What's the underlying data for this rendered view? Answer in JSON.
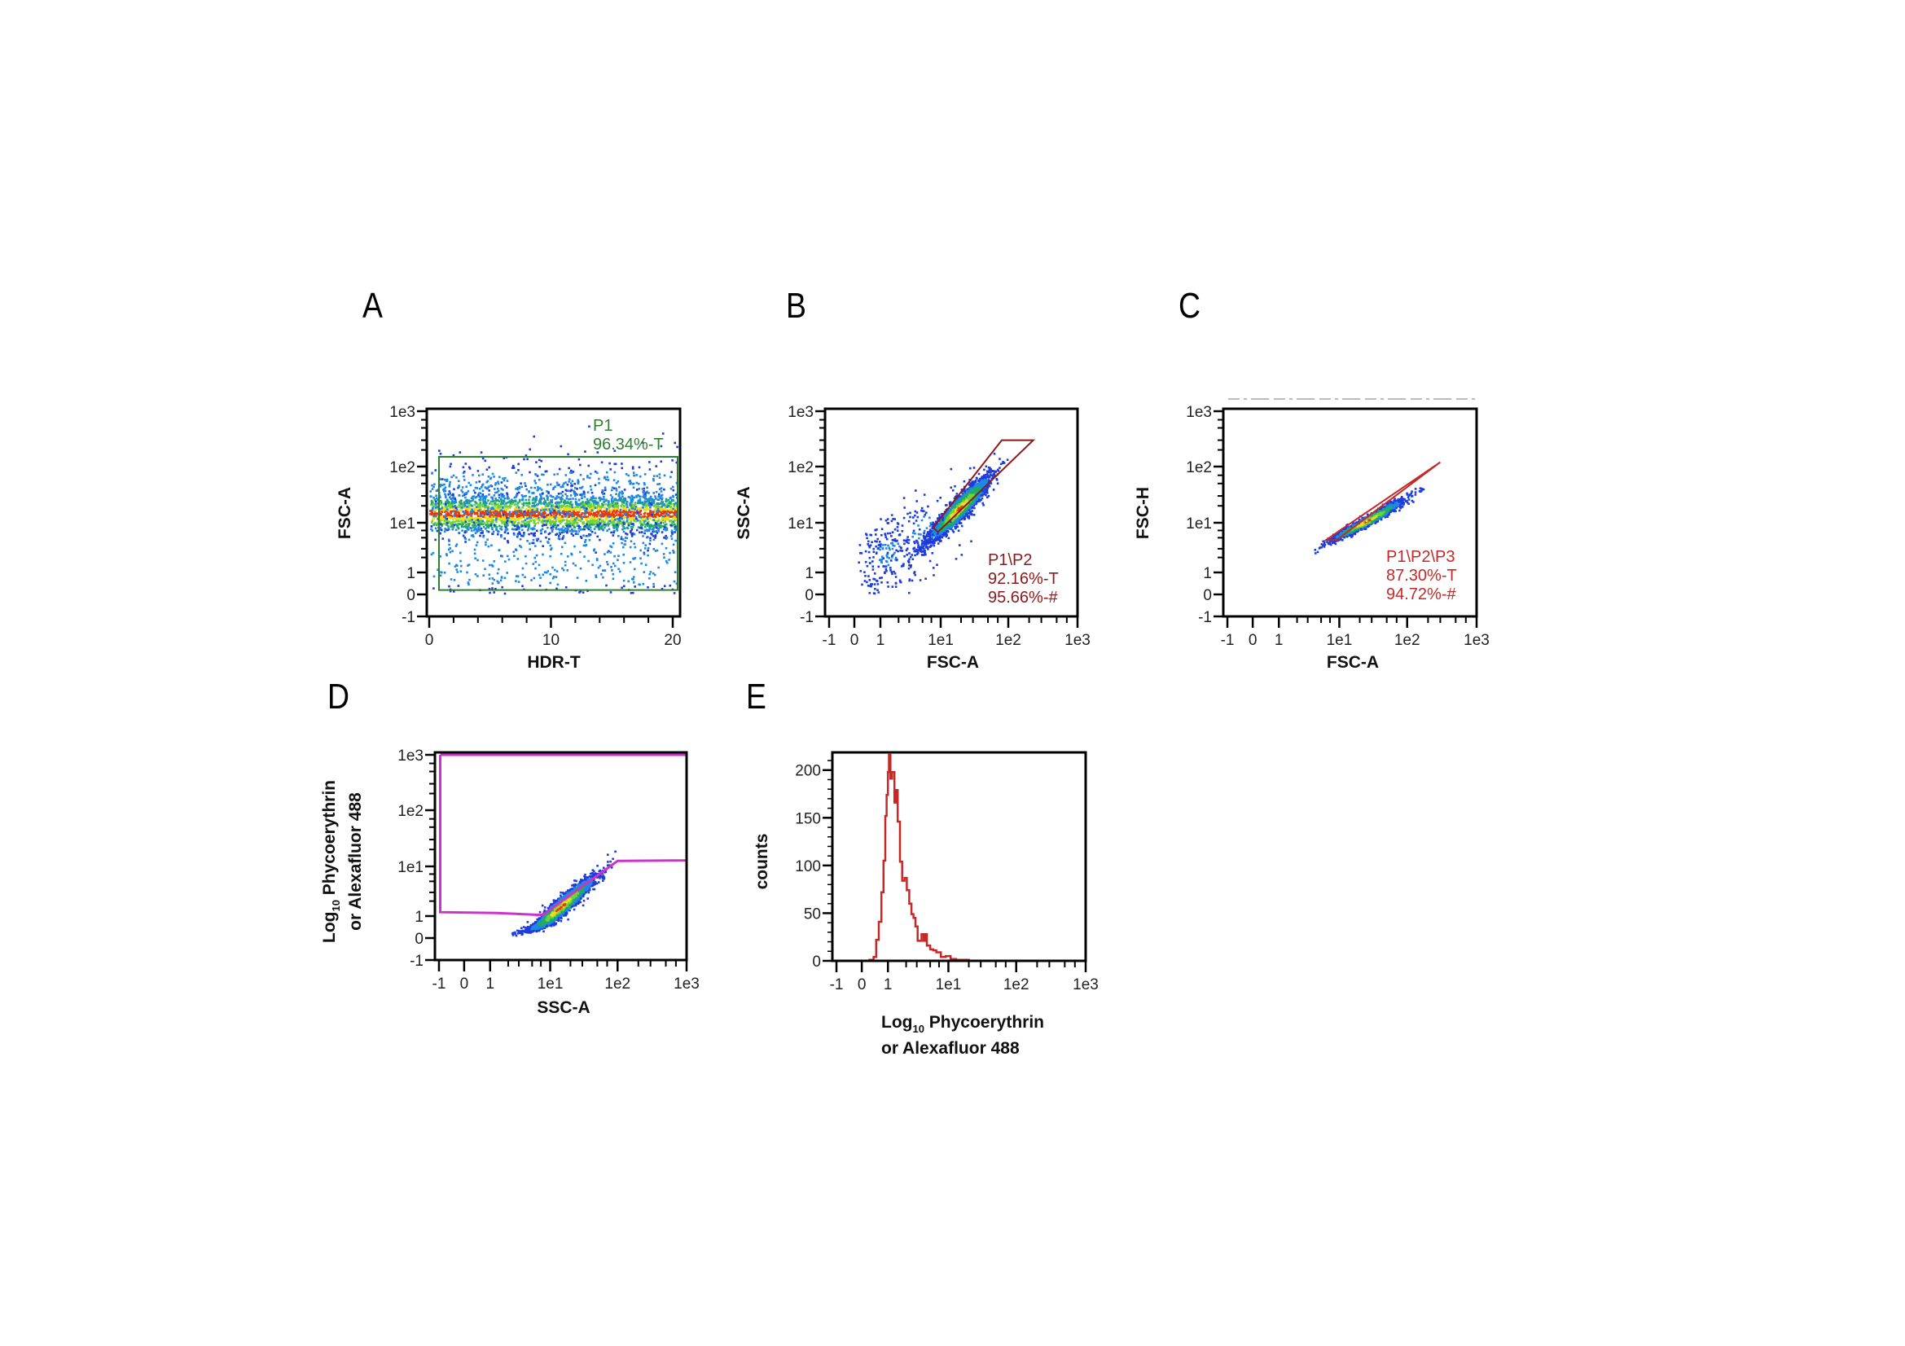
{
  "figure": {
    "panel_letters": [
      "A",
      "B",
      "C",
      "D",
      "E"
    ]
  },
  "chart_data": [
    {
      "id": "A",
      "type": "scatter",
      "title": "",
      "xlabel": "HDR-T",
      "ylabel": "FSC-A",
      "xscale": "linear",
      "yscale": "logicle",
      "xlim": [
        0,
        20.5
      ],
      "ylim": [
        -1,
        1000
      ],
      "xticks": [
        {
          "v": 0,
          "label": "0"
        },
        {
          "v": 10,
          "label": "10"
        },
        {
          "v": 20,
          "label": "20"
        }
      ],
      "yticks": [
        {
          "v": 1000,
          "label": "1e3"
        },
        {
          "v": 100,
          "label": "1e2"
        },
        {
          "v": 10,
          "label": "1e1"
        },
        {
          "v": 1,
          "label": "1"
        },
        {
          "v": 0,
          "label": "0"
        },
        {
          "v": -1,
          "label": "-1"
        }
      ],
      "gate": {
        "name": "P1",
        "shape": "rectangle",
        "x_range": [
          0.8,
          20.4
        ],
        "y_range": [
          0.2,
          150
        ],
        "color": "#2e7d32",
        "stats": [
          "P1",
          "96.34%-T"
        ]
      },
      "populations": [
        {
          "x_range": [
            0,
            20.5
          ],
          "y_center": 15,
          "y_spread_decades": 0.18,
          "n": 2600
        },
        {
          "x_range": [
            0,
            20.5
          ],
          "y_center": 30,
          "y_spread_decades": 0.35,
          "n": 700
        },
        {
          "x_range": [
            0,
            20.5
          ],
          "y_center": 2,
          "y_spread_decades": 0.5,
          "n": 380
        }
      ],
      "grid": false
    },
    {
      "id": "B",
      "type": "scatter",
      "xlabel": "FSC-A",
      "ylabel": "SSC-A",
      "xscale": "logicle",
      "yscale": "logicle",
      "xlim": [
        -1,
        1000
      ],
      "ylim": [
        -1,
        1000
      ],
      "xticks": [
        {
          "v": -1,
          "label": "-1"
        },
        {
          "v": 0,
          "label": "0"
        },
        {
          "v": 1,
          "label": "1"
        },
        {
          "v": 10,
          "label": "1e1"
        },
        {
          "v": 100,
          "label": "1e2"
        },
        {
          "v": 1000,
          "label": "1e3"
        }
      ],
      "yticks": [
        {
          "v": 1000,
          "label": "1e3"
        },
        {
          "v": 100,
          "label": "1e2"
        },
        {
          "v": 10,
          "label": "1e1"
        },
        {
          "v": 1,
          "label": "1"
        },
        {
          "v": 0,
          "label": "0"
        },
        {
          "v": -1,
          "label": "-1"
        }
      ],
      "gate": {
        "name": "P1\\P2",
        "shape": "polygon",
        "vertices": [
          [
            7.5,
            8
          ],
          [
            80,
            300
          ],
          [
            230,
            300
          ],
          [
            9,
            6.5
          ]
        ],
        "color": "#8b1a1a",
        "stats": [
          "P1\\P2",
          "92.16%-T",
          "95.66%-#"
        ]
      },
      "populations": [
        {
          "x_center": 18,
          "y_center": 18,
          "spread_decades": [
            0.22,
            0.28
          ],
          "corr": 0.93,
          "n": 2600
        },
        {
          "x_center": 1.3,
          "y_center": 2.5,
          "spread_decades": [
            0.35,
            0.45
          ],
          "corr": 0.3,
          "n": 230
        },
        {
          "x_center": 5,
          "y_center": 8,
          "spread_decades": [
            0.5,
            0.5
          ],
          "corr": 0.6,
          "n": 90
        }
      ],
      "grid": false
    },
    {
      "id": "C",
      "type": "scatter",
      "xlabel": "FSC-A",
      "ylabel": "FSC-H",
      "xscale": "logicle",
      "yscale": "logicle",
      "xlim": [
        -1,
        1000
      ],
      "ylim": [
        -1,
        1000
      ],
      "xticks": [
        {
          "v": -1,
          "label": "-1"
        },
        {
          "v": 0,
          "label": "0"
        },
        {
          "v": 1,
          "label": "1"
        },
        {
          "v": 10,
          "label": "1e1"
        },
        {
          "v": 100,
          "label": "1e2"
        },
        {
          "v": 1000,
          "label": "1e3"
        }
      ],
      "yticks": [
        {
          "v": 1000,
          "label": "1e3"
        },
        {
          "v": 100,
          "label": "1e2"
        },
        {
          "v": 10,
          "label": "1e1"
        },
        {
          "v": 1,
          "label": "1"
        },
        {
          "v": 0,
          "label": "0"
        },
        {
          "v": -1,
          "label": "-1"
        }
      ],
      "gate": {
        "name": "P1\\P2\\P3",
        "shape": "polygon",
        "vertices": [
          [
            6,
            4.5
          ],
          [
            9,
            4.5
          ],
          [
            300,
            120
          ]
        ],
        "color": "#c62828",
        "stats": [
          "P1\\P2\\P3",
          "87.30%-T",
          "94.72%-#"
        ]
      },
      "populations": [
        {
          "x_center": 25,
          "y_center": 11,
          "spread_decades": [
            0.25,
            0.18
          ],
          "corr": 0.97,
          "n": 2200
        }
      ],
      "grid": false
    },
    {
      "id": "D",
      "type": "scatter",
      "xlabel": "SSC-A",
      "ylabel": "Log10 Phycoerythrin or Alexafluor 488",
      "ylabel_lines": [
        {
          "pre": "Log",
          "sub": "10",
          "post": " Phycoerythrin"
        },
        {
          "pre": "or Alexafluor 488",
          "sub": "",
          "post": ""
        }
      ],
      "xscale": "logicle",
      "yscale": "logicle",
      "xlim": [
        -1,
        1000
      ],
      "ylim": [
        -1,
        1000
      ],
      "xticks": [
        {
          "v": -1,
          "label": "-1"
        },
        {
          "v": 0,
          "label": "0"
        },
        {
          "v": 1,
          "label": "1"
        },
        {
          "v": 10,
          "label": "1e1"
        },
        {
          "v": 100,
          "label": "1e2"
        },
        {
          "v": 1000,
          "label": "1e3"
        }
      ],
      "yticks": [
        {
          "v": 1000,
          "label": "1e3"
        },
        {
          "v": 100,
          "label": "1e2"
        },
        {
          "v": 10,
          "label": "1e1"
        },
        {
          "v": 1,
          "label": "1"
        },
        {
          "v": 0,
          "label": "0"
        },
        {
          "v": -1,
          "label": "-1"
        }
      ],
      "gate": {
        "name": "",
        "shape": "polyline",
        "vertices": [
          [
            -0.95,
            1000
          ],
          [
            -0.95,
            1.2
          ],
          [
            1.3,
            1.15
          ],
          [
            7.5,
            1.05
          ],
          [
            100,
            12.5
          ],
          [
            1000,
            12.8
          ],
          [
            1000,
            1000
          ],
          [
            -0.95,
            1000
          ]
        ],
        "color": "#cc33cc",
        "stats": []
      },
      "populations": [
        {
          "x_center": 14,
          "y_center": 1.6,
          "spread_decades": [
            0.25,
            0.3
          ],
          "corr": 0.95,
          "n": 2400
        }
      ],
      "grid": false
    },
    {
      "id": "E",
      "type": "histogram",
      "xlabel": "Log10 Phycoerythrin or Alexafluor 488",
      "xlabel_lines": [
        {
          "pre": "Log",
          "sub": "10",
          "post": " Phycoerythrin"
        },
        {
          "pre": "or Alexafluor 488",
          "sub": "",
          "post": ""
        }
      ],
      "ylabel": "counts",
      "xscale": "logicle",
      "xlim": [
        -1,
        1000
      ],
      "ylim": [
        0,
        216
      ],
      "xticks": [
        {
          "v": -1,
          "label": "-1"
        },
        {
          "v": 0,
          "label": "0"
        },
        {
          "v": 1,
          "label": "1"
        },
        {
          "v": 10,
          "label": "1e1"
        },
        {
          "v": 100,
          "label": "1e2"
        },
        {
          "v": 1000,
          "label": "1e3"
        }
      ],
      "yticks": [
        {
          "v": 200,
          "label": "200"
        },
        {
          "v": 150,
          "label": "150"
        },
        {
          "v": 100,
          "label": "100"
        },
        {
          "v": 50,
          "label": "50"
        },
        {
          "v": 0,
          "label": "0"
        }
      ],
      "color": "#c62828",
      "bins": [
        {
          "x0": 0.3,
          "x1": 0.45,
          "count": 1
        },
        {
          "x0": 0.45,
          "x1": 0.55,
          "count": 4
        },
        {
          "x0": 0.55,
          "x1": 0.65,
          "count": 22
        },
        {
          "x0": 0.65,
          "x1": 0.75,
          "count": 41
        },
        {
          "x0": 0.75,
          "x1": 0.83,
          "count": 72
        },
        {
          "x0": 0.83,
          "x1": 0.9,
          "count": 105
        },
        {
          "x0": 0.9,
          "x1": 0.95,
          "count": 152
        },
        {
          "x0": 0.95,
          "x1": 1.0,
          "count": 174
        },
        {
          "x0": 1.0,
          "x1": 1.04,
          "count": 198
        },
        {
          "x0": 1.04,
          "x1": 1.1,
          "count": 216
        },
        {
          "x0": 1.1,
          "x1": 1.17,
          "count": 191
        },
        {
          "x0": 1.17,
          "x1": 1.28,
          "count": 198
        },
        {
          "x0": 1.28,
          "x1": 1.38,
          "count": 166
        },
        {
          "x0": 1.38,
          "x1": 1.45,
          "count": 179
        },
        {
          "x0": 1.45,
          "x1": 1.58,
          "count": 146
        },
        {
          "x0": 1.58,
          "x1": 1.72,
          "count": 104
        },
        {
          "x0": 1.72,
          "x1": 1.88,
          "count": 84
        },
        {
          "x0": 1.88,
          "x1": 2.05,
          "count": 87
        },
        {
          "x0": 2.05,
          "x1": 2.25,
          "count": 74
        },
        {
          "x0": 2.25,
          "x1": 2.45,
          "count": 60
        },
        {
          "x0": 2.45,
          "x1": 2.65,
          "count": 49
        },
        {
          "x0": 2.65,
          "x1": 2.85,
          "count": 45
        },
        {
          "x0": 2.85,
          "x1": 3.1,
          "count": 36
        },
        {
          "x0": 3.1,
          "x1": 3.3,
          "count": 21
        },
        {
          "x0": 3.3,
          "x1": 3.6,
          "count": 21
        },
        {
          "x0": 3.6,
          "x1": 3.9,
          "count": 28
        },
        {
          "x0": 3.9,
          "x1": 4.15,
          "count": 21
        },
        {
          "x0": 4.15,
          "x1": 4.4,
          "count": 28
        },
        {
          "x0": 4.4,
          "x1": 5.0,
          "count": 16
        },
        {
          "x0": 5.0,
          "x1": 5.6,
          "count": 12
        },
        {
          "x0": 5.6,
          "x1": 6.3,
          "count": 11
        },
        {
          "x0": 6.3,
          "x1": 7.5,
          "count": 9
        },
        {
          "x0": 7.5,
          "x1": 9.0,
          "count": 4
        },
        {
          "x0": 9.0,
          "x1": 10.8,
          "count": 5
        },
        {
          "x0": 10.8,
          "x1": 13.0,
          "count": 2
        },
        {
          "x0": 13.0,
          "x1": 16.0,
          "count": 1
        },
        {
          "x0": 16.0,
          "x1": 20.0,
          "count": 1
        }
      ],
      "grid": false
    }
  ]
}
